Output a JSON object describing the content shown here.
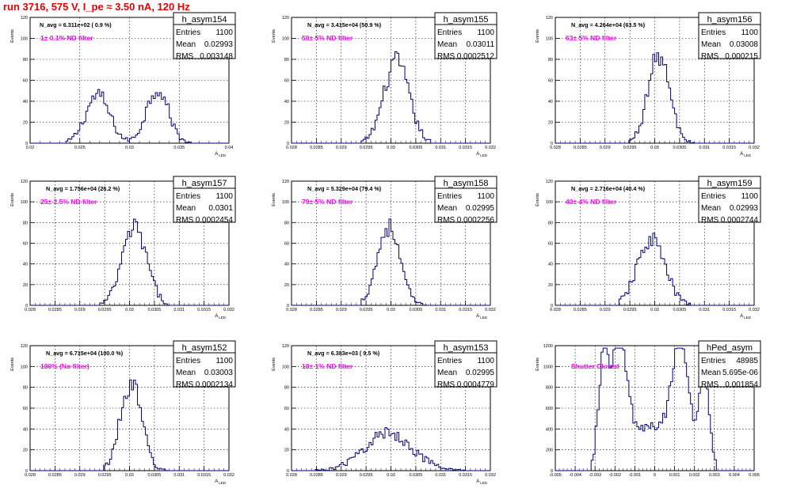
{
  "run_title": "run 3716,   575 V, I_pe ≈ 3.50 nA, 120 Hz",
  "stats_labels": {
    "entries": "Entries",
    "mean": "Mean",
    "rms": "RMS"
  },
  "colors": {
    "histogram": "#000080",
    "annotation": "#ff00ff",
    "run_title": "#e60000",
    "grid": "#000000"
  },
  "chart_data": [
    {
      "type": "histogram",
      "name": "h_asym154",
      "nav": "N_avg = 6.311e+02 ( 0.9 %)",
      "annotation": "1± 0.1% ND filter",
      "stats": {
        "entries": "1100",
        "mean": "0.02993",
        "rms": "0.003148"
      },
      "ylabel": "Events",
      "xlabel": "A_LED",
      "xlim": [
        0.02,
        0.04
      ],
      "ylim": [
        0,
        120
      ],
      "xticks": [
        "0.02",
        "0.025",
        "0.03",
        "0.035",
        "0.04"
      ],
      "yticks": [
        "0",
        "20",
        "40",
        "60",
        "80",
        "100",
        "120"
      ],
      "shape": "bimodal",
      "peaks": [
        {
          "x": 0.0268,
          "y": 46,
          "w": 0.0012
        },
        {
          "x": 0.0328,
          "y": 52,
          "w": 0.0011
        }
      ],
      "x_range": [
        0.0236,
        0.0362
      ],
      "grid": true
    },
    {
      "type": "histogram",
      "name": "h_asym155",
      "nav": "N_avg = 3.415e+04 (50.9 %)",
      "annotation": "50± 5% ND filter",
      "stats": {
        "entries": "1100",
        "mean": "0.03011",
        "rms": "0.0002512"
      },
      "ylabel": "Events",
      "xlabel": "A_LED",
      "xlim": [
        0.028,
        0.032
      ],
      "ylim": [
        0,
        120
      ],
      "xticks": [
        "0.028",
        "0.0285",
        "0.029",
        "0.0295",
        "0.03",
        "0.0305",
        "0.031",
        "0.0315",
        "0.032"
      ],
      "yticks": [
        "0",
        "20",
        "40",
        "60",
        "80",
        "100",
        "120"
      ],
      "shape": "gauss",
      "peaks": [
        {
          "x": 0.03011,
          "y": 78,
          "w": 0.00025
        }
      ],
      "x_range": [
        0.0294,
        0.0308
      ],
      "grid": true
    },
    {
      "type": "histogram",
      "name": "h_asym156",
      "nav": "N_avg = 4.264e+04 (63.5 %)",
      "annotation": "63± 5% ND filter",
      "stats": {
        "entries": "1100",
        "mean": "0.03008",
        "rms": "0.000215"
      },
      "ylabel": "Events",
      "xlabel": "A_LED",
      "xlim": [
        0.028,
        0.032
      ],
      "ylim": [
        0,
        120
      ],
      "xticks": [
        "0.028",
        "0.0285",
        "0.029",
        "0.0295",
        "0.03",
        "0.0305",
        "0.031",
        "0.0315",
        "0.032"
      ],
      "yticks": [
        "0",
        "20",
        "40",
        "60",
        "80",
        "100",
        "120"
      ],
      "shape": "gauss",
      "peaks": [
        {
          "x": 0.03008,
          "y": 84,
          "w": 0.000215
        }
      ],
      "x_range": [
        0.0295,
        0.0308
      ],
      "grid": true
    },
    {
      "type": "histogram",
      "name": "h_asym157",
      "nav": "N_avg = 1.756e+04 (26.2 %)",
      "annotation": "25± 2.5% ND filter",
      "stats": {
        "entries": "1100",
        "mean": "0.0301",
        "rms": "0.0002454"
      },
      "ylabel": "Events",
      "xlabel": "A_LED",
      "xlim": [
        0.028,
        0.032
      ],
      "ylim": [
        0,
        120
      ],
      "xticks": [
        "0.028",
        "0.0285",
        "0.029",
        "0.0295",
        "0.03",
        "0.0305",
        "0.031",
        "0.0315",
        "0.032"
      ],
      "yticks": [
        "0",
        "20",
        "40",
        "60",
        "80",
        "100",
        "120"
      ],
      "shape": "gauss",
      "peaks": [
        {
          "x": 0.0301,
          "y": 75,
          "w": 0.000245
        }
      ],
      "x_range": [
        0.0294,
        0.0308
      ],
      "grid": true
    },
    {
      "type": "histogram",
      "name": "h_asym158",
      "nav": "N_avg = 5.329e+04 (79.4 %)",
      "annotation": "79± 5% ND filter",
      "stats": {
        "entries": "1100",
        "mean": "0.02995",
        "rms": "0.0002256"
      },
      "ylabel": "Events",
      "xlabel": "A_LED",
      "xlim": [
        0.028,
        0.032
      ],
      "ylim": [
        0,
        120
      ],
      "xticks": [
        "0.028",
        "0.0285",
        "0.029",
        "0.0295",
        "0.03",
        "0.0305",
        "0.031",
        "0.0315",
        "0.032"
      ],
      "yticks": [
        "0",
        "20",
        "40",
        "60",
        "80",
        "100",
        "120"
      ],
      "shape": "gauss",
      "peaks": [
        {
          "x": 0.02995,
          "y": 76,
          "w": 0.000226
        }
      ],
      "x_range": [
        0.0294,
        0.0307
      ],
      "grid": true
    },
    {
      "type": "histogram",
      "name": "h_asym159",
      "nav": "N_avg = 2.716e+04 (40.4 %)",
      "annotation": "40± 4% ND filter",
      "stats": {
        "entries": "1100",
        "mean": "0.02993",
        "rms": "0.0002744"
      },
      "ylabel": "Events",
      "xlabel": "A_LED",
      "xlim": [
        0.028,
        0.032
      ],
      "ylim": [
        0,
        120
      ],
      "xticks": [
        "0.028",
        "0.0285",
        "0.029",
        "0.0295",
        "0.03",
        "0.0305",
        "0.031",
        "0.0315",
        "0.032"
      ],
      "yticks": [
        "0",
        "20",
        "40",
        "60",
        "80",
        "100",
        "120"
      ],
      "shape": "gauss",
      "peaks": [
        {
          "x": 0.02993,
          "y": 64,
          "w": 0.000274
        }
      ],
      "x_range": [
        0.0293,
        0.0307
      ],
      "grid": true
    },
    {
      "type": "histogram",
      "name": "h_asym152",
      "nav": "N_avg = 6.715e+04 (100.0 %)",
      "annotation": "100% (No filter)",
      "stats": {
        "entries": "1100",
        "mean": "0.03003",
        "rms": "0.0002134"
      },
      "ylabel": "Events",
      "xlabel": "A_LED",
      "xlim": [
        0.028,
        0.032
      ],
      "ylim": [
        0,
        120
      ],
      "xticks": [
        "0.028",
        "0.0285",
        "0.029",
        "0.0295",
        "0.03",
        "0.0305",
        "0.031",
        "0.0315",
        "0.032"
      ],
      "yticks": [
        "0",
        "20",
        "40",
        "60",
        "80",
        "100",
        "120"
      ],
      "shape": "gauss",
      "peaks": [
        {
          "x": 0.03003,
          "y": 84,
          "w": 0.000213
        }
      ],
      "x_range": [
        0.0295,
        0.0308
      ],
      "grid": true
    },
    {
      "type": "histogram",
      "name": "h_asym153",
      "nav": "N_avg = 6.383e+03 ( 9.5 %)",
      "annotation": "10± 1% ND filter",
      "stats": {
        "entries": "1100",
        "mean": "0.02995",
        "rms": "0.0004779"
      },
      "ylabel": "Events",
      "xlabel": "A_LED",
      "xlim": [
        0.028,
        0.032
      ],
      "ylim": [
        0,
        120
      ],
      "xticks": [
        "0.028",
        "0.0285",
        "0.029",
        "0.0295",
        "0.03",
        "0.0305",
        "0.031",
        "0.0315",
        "0.032"
      ],
      "yticks": [
        "0",
        "20",
        "40",
        "60",
        "80",
        "100",
        "120"
      ],
      "shape": "gauss",
      "peaks": [
        {
          "x": 0.02995,
          "y": 36,
          "w": 0.000478
        }
      ],
      "x_range": [
        0.0285,
        0.0315
      ],
      "grid": true
    },
    {
      "type": "histogram",
      "name": "hPed_asym",
      "nav": "",
      "annotation": "Shutter Closed",
      "stats": {
        "entries": "48985",
        "mean": "5.695e-06",
        "rms": "0.001854"
      },
      "ylabel": "Events",
      "xlabel": "",
      "xlim": [
        -0.005,
        0.005
      ],
      "ylim": [
        0,
        1300
      ],
      "xticks": [
        "-0.005",
        "-0.004",
        "-0.003",
        "-0.002",
        "-0.001",
        "0",
        "0.001",
        "0.002",
        "0.003",
        "0.004",
        "0.005"
      ],
      "yticks": [
        "0",
        "200",
        "400",
        "600",
        "800",
        "1000",
        "1200"
      ],
      "shape": "pedestal",
      "peaks": [
        {
          "x": -0.0026,
          "y": 1050,
          "w": 0.00022
        },
        {
          "x": -0.0018,
          "y": 1180,
          "w": 0.0004
        },
        {
          "x": 0.0013,
          "y": 1150,
          "w": 0.0004
        },
        {
          "x": 0.0025,
          "y": 900,
          "w": 0.00025
        },
        {
          "x": 0.0,
          "y": 450,
          "w": 0.0014
        }
      ],
      "x_range": [
        -0.0032,
        0.0031
      ],
      "grid": true
    }
  ]
}
